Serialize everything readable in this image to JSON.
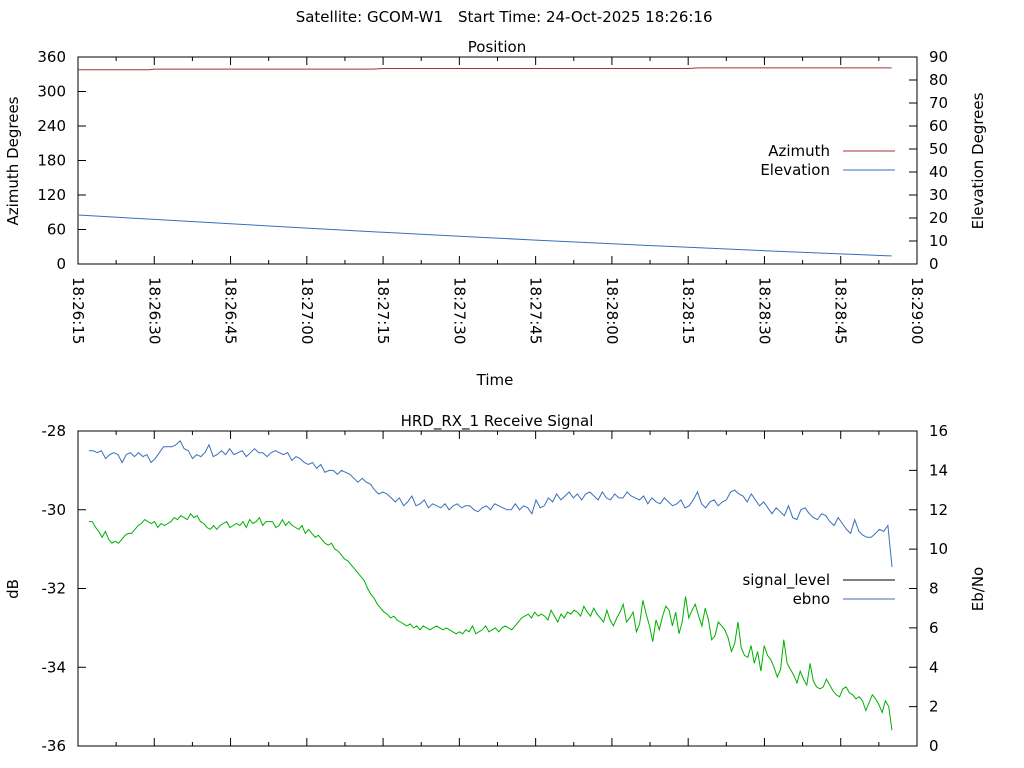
{
  "header": {
    "satellite": "Satellite: GCOM-W1",
    "start_time": "Start Time: 24-Oct-2025 18:26:16"
  },
  "chart_data": [
    {
      "type": "line",
      "title": "Position",
      "xlabel": "Time",
      "ylabel": "Azimuth Degrees",
      "y2label": "Elevation Degrees",
      "x_ticks": [
        "18:26:15",
        "18:26:30",
        "18:26:45",
        "18:27:00",
        "18:27:15",
        "18:27:30",
        "18:27:45",
        "18:28:00",
        "18:28:15",
        "18:28:30",
        "18:28:45",
        "18:29:00"
      ],
      "y_ticks": [
        "0",
        "60",
        "120",
        "180",
        "240",
        "300",
        "360"
      ],
      "y2_ticks": [
        "0",
        "10",
        "20",
        "30",
        "40",
        "50",
        "60",
        "70",
        "80",
        "90"
      ],
      "ylim": [
        0,
        360
      ],
      "y2lim": [
        0,
        90
      ],
      "xlim_seconds": [
        0,
        165
      ],
      "legend_position": "right",
      "grid": false,
      "series": [
        {
          "name": "Azimuth",
          "axis": "left",
          "color": "#a0303a",
          "points": [
            [
              0,
              338
            ],
            [
              14,
              338
            ],
            [
              15,
              339
            ],
            [
              58,
              339
            ],
            [
              60,
              340
            ],
            [
              120,
              340
            ],
            [
              122,
              341
            ],
            [
              160,
              341
            ]
          ]
        },
        {
          "name": "Elevation",
          "axis": "right",
          "color": "#3a6fb8",
          "points": [
            [
              0,
              21.3
            ],
            [
              15,
              19.4
            ],
            [
              30,
              17.5
            ],
            [
              45,
              15.6
            ],
            [
              60,
              13.8
            ],
            [
              75,
              12.1
            ],
            [
              90,
              10.4
            ],
            [
              105,
              8.8
            ],
            [
              120,
              7.3
            ],
            [
              135,
              5.8
            ],
            [
              150,
              4.4
            ],
            [
              160,
              3.5
            ]
          ]
        }
      ]
    },
    {
      "type": "line",
      "title": "HRD_RX_1 Receive Signal",
      "ylabel": "dB",
      "y2label": "Eb/No",
      "y_ticks": [
        "-36",
        "-34",
        "-32",
        "-30",
        "-28"
      ],
      "y2_ticks": [
        "0",
        "2",
        "4",
        "6",
        "8",
        "10",
        "12",
        "14",
        "16"
      ],
      "ylim": [
        -36,
        -28
      ],
      "y2lim": [
        0,
        16
      ],
      "x_unlabeled_ticks": 22,
      "legend_position": "right",
      "grid": false,
      "series": [
        {
          "name": "signal_level",
          "axis": "left",
          "color": "#000000",
          "values": []
        },
        {
          "name": "ebno",
          "axis": "right",
          "color": "#3a6fb8",
          "values": [
            15,
            15,
            14.9,
            15,
            14.6,
            14.8,
            14.9,
            14.8,
            14.4,
            14.8,
            14.9,
            14.7,
            14.9,
            14.7,
            14.8,
            14.4,
            14.6,
            14.9,
            15.2,
            15.2,
            15.2,
            15.3,
            15.5,
            15.1,
            15,
            14.6,
            14.8,
            14.7,
            14.9,
            15.3,
            14.7,
            14.8,
            15,
            14.8,
            15.1,
            14.8,
            14.9,
            15,
            14.7,
            14.9,
            15.1,
            14.9,
            14.9,
            14.7,
            14.9,
            15,
            14.9,
            14.8,
            14.9,
            14.5,
            14.7,
            14.6,
            14.4,
            14.3,
            14.4,
            14.1,
            14.3,
            13.9,
            14,
            14,
            13.8,
            14,
            13.9,
            13.8,
            13.6,
            13.4,
            13.6,
            13.4,
            13.3,
            13,
            12.8,
            12.9,
            12.8,
            12.6,
            12.4,
            12.6,
            12.2,
            12.4,
            12.7,
            12.2,
            12.3,
            12.5,
            12.1,
            12.3,
            12.2,
            12.1,
            12.3,
            12,
            12.2,
            12.3,
            12.1,
            12.2,
            12.2,
            12,
            11.9,
            12.1,
            12.2,
            12,
            12.3,
            12.2,
            12.1,
            12,
            12,
            12.3,
            12,
            12.2,
            12.1,
            11.8,
            12.5,
            12.1,
            12.2,
            12.6,
            12.4,
            12.8,
            12.5,
            12.7,
            12.9,
            12.6,
            12.8,
            12.5,
            12.8,
            12.9,
            12.7,
            12.5,
            12.9,
            12.6,
            12.5,
            12.8,
            12.6,
            12.6,
            12.9,
            12.7,
            12.6,
            12.5,
            12.7,
            12.3,
            12.6,
            12.4,
            12.3,
            12.6,
            12.4,
            12.2,
            12.3,
            12.5,
            12.1,
            12.2,
            12.5,
            12.9,
            12.3,
            12.1,
            12.4,
            12.5,
            12.2,
            12.4,
            12.5,
            12.9,
            13,
            12.8,
            12.7,
            12.4,
            12.8,
            12.5,
            12.2,
            12.4,
            12.1,
            11.8,
            12.1,
            11.9,
            11.7,
            12.2,
            11.6,
            11.5,
            12,
            12.1,
            11.8,
            11.6,
            11.5,
            11.8,
            11.7,
            11.4,
            11.2,
            11.6,
            11.3,
            11,
            10.8,
            11.5,
            10.9,
            10.7,
            10.6,
            10.6,
            10.8,
            11,
            10.9,
            11.2,
            9.1
          ]
        },
        {
          "name": "ebno_green",
          "axis": "right",
          "color": "#00b000",
          "legend": false,
          "values": [
            11.4,
            11.4,
            11.1,
            10.9,
            10.6,
            10.9,
            10.5,
            10.3,
            10.4,
            10.3,
            10.5,
            10.7,
            10.8,
            10.8,
            11,
            11.2,
            11.3,
            11.5,
            11.4,
            11.3,
            11.4,
            11.1,
            11.3,
            11.2,
            11.3,
            11.4,
            11.6,
            11.5,
            11.7,
            11.6,
            11.5,
            11.8,
            11.6,
            11.7,
            11.4,
            11.3,
            11.1,
            11,
            11.2,
            11,
            11.2,
            11.3,
            11.4,
            11.1,
            11.2,
            11.3,
            11.2,
            11.4,
            11.1,
            11.5,
            11.3,
            11.4,
            11.6,
            11.2,
            11.4,
            11.4,
            11.4,
            11.1,
            11.2,
            11.5,
            11.2,
            11.4,
            11.2,
            11.1,
            11,
            11.2,
            10.8,
            11,
            10.8,
            10.6,
            10.7,
            10.5,
            10.3,
            10.2,
            10.3,
            10,
            9.9,
            9.7,
            9.5,
            9.4,
            9.2,
            9,
            8.8,
            8.6,
            8.4,
            8,
            7.7,
            7.5,
            7.2,
            7,
            6.8,
            6.7,
            6.5,
            6.6,
            6.4,
            6.3,
            6.2,
            6.1,
            6.2,
            6,
            6.1,
            5.9,
            6.1,
            6,
            5.9,
            6,
            6.1,
            6,
            5.9,
            6,
            5.9,
            5.8,
            5.7,
            5.8,
            5.7,
            5.9,
            5.8,
            6.1,
            5.7,
            5.8,
            5.9,
            6.1,
            5.8,
            5.9,
            6,
            5.8,
            6,
            6.1,
            6,
            5.9,
            6.1,
            6.3,
            6.5,
            6.6,
            6.7,
            6.5,
            6.8,
            6.6,
            6.7,
            6.6,
            6.4,
            6.9,
            6.6,
            6.3,
            6.7,
            6.5,
            6.8,
            6.7,
            6.9,
            6.8,
            6.6,
            7.1,
            6.8,
            6.6,
            7,
            6.7,
            6.5,
            6.3,
            6.9,
            6.4,
            6.1,
            6.5,
            6.8,
            7.2,
            6.3,
            6.5,
            6.8,
            5.8,
            6.2,
            7.4,
            6.7,
            6.1,
            5.3,
            6.4,
            5.9,
            6.6,
            7.1,
            6.9,
            6.1,
            6.8,
            5.7,
            6.3,
            7.6,
            6.5,
            6.9,
            7.2,
            6.6,
            6.1,
            7,
            6.4,
            5.4,
            5.6,
            6.3,
            6.1,
            5.9,
            5.5,
            4.8,
            5.2,
            6.3,
            5,
            4.6,
            4.5,
            5.1,
            4.2,
            4.8,
            3.8,
            5.1,
            4.6,
            4.4,
            4,
            3.5,
            3.9,
            5.4,
            4.2,
            3.9,
            3.6,
            3.2,
            3.8,
            3.4,
            3.1,
            4.2,
            3.3,
            3,
            2.9,
            3,
            3.4,
            3.1,
            2.8,
            2.6,
            2.5,
            2.9,
            3,
            2.7,
            2.6,
            2.4,
            2.5,
            2.3,
            1.8,
            2.2,
            2.6,
            2.4,
            2.1,
            1.7,
            2.3,
            2,
            0.8
          ]
        }
      ]
    }
  ]
}
